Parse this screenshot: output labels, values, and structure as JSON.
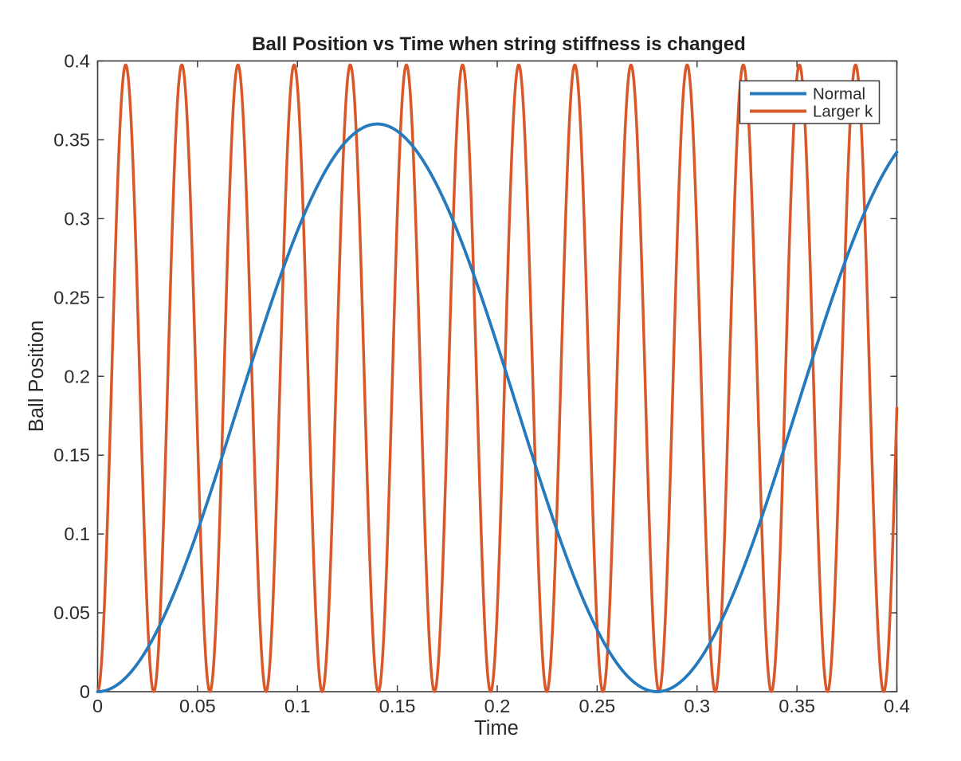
{
  "chart_data": {
    "type": "line",
    "title": "Ball Position vs Time when string stiffness is changed",
    "xlabel": "Time",
    "ylabel": "Ball Position",
    "xlim": [
      0,
      0.4
    ],
    "ylim": [
      0,
      0.4
    ],
    "xticks": [
      0,
      0.05,
      0.1,
      0.15,
      0.2,
      0.25,
      0.3,
      0.35,
      0.4
    ],
    "yticks": [
      0,
      0.05,
      0.1,
      0.15,
      0.2,
      0.25,
      0.3,
      0.35,
      0.4
    ],
    "xtick_labels": [
      "0",
      "0.05",
      "0.1",
      "0.15",
      "0.2",
      "0.25",
      "0.3",
      "0.35",
      "0.4"
    ],
    "ytick_labels": [
      "0",
      "0.05",
      "0.1",
      "0.15",
      "0.2",
      "0.25",
      "0.3",
      "0.35",
      "0.4"
    ],
    "grid": false,
    "box": true,
    "tick_direction": "in",
    "legend_position": "top-right-inside",
    "draw_order": [
      1,
      0
    ],
    "series": [
      {
        "name": "Normal",
        "color": "#2579bd",
        "line_width": 3.8,
        "model": "y = A*(1-cos(2*pi*t/T))",
        "amplitude": 0.18,
        "period": 0.28,
        "t_range": [
          0,
          0.4
        ],
        "key_points": {
          "start": [
            0,
            0
          ],
          "peak": [
            0.14,
            0.36
          ],
          "zero": [
            0.28,
            0
          ],
          "end": [
            0.4,
            0.34
          ]
        }
      },
      {
        "name": "Larger k",
        "color": "#d8582a",
        "line_width": 3.5,
        "model": "y = A*(1-cos(2*pi*t/T))",
        "amplitude": 0.19875,
        "period": 0.0281,
        "t_range": [
          0,
          0.4
        ],
        "key_points": {
          "start": [
            0,
            0
          ],
          "peak_height": 0.3975,
          "first_peak_t": 0.01405,
          "zero_spacing": 0.0281,
          "num_peaks_visible": 14,
          "end": [
            0.4,
            0.18
          ]
        }
      }
    ],
    "colors": {
      "background": "#ffffff",
      "axis": "#3d3d3d",
      "text": "#2b2b2b"
    }
  }
}
